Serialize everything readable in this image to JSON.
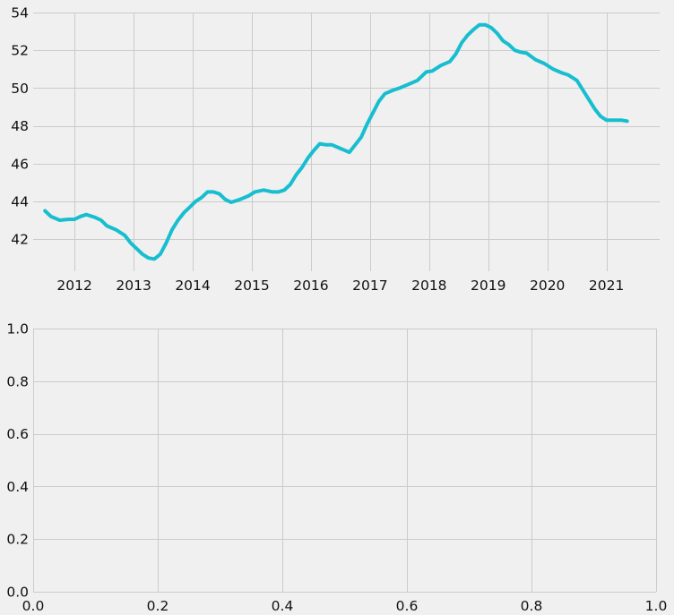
{
  "chart_data": [
    {
      "type": "line",
      "title": "",
      "xlabel": "",
      "ylabel": "",
      "xlim": [
        2011.3,
        2021.9
      ],
      "ylim": [
        40.3,
        54
      ],
      "xticks": [
        2012,
        2013,
        2014,
        2015,
        2016,
        2017,
        2018,
        2019,
        2020,
        2021
      ],
      "xtick_labels": [
        "2012",
        "2013",
        "2014",
        "2015",
        "2016",
        "2017",
        "2018",
        "2019",
        "2020",
        "2021"
      ],
      "yticks": [
        42,
        44,
        46,
        48,
        50,
        52,
        54
      ],
      "ytick_labels": [
        "42",
        "44",
        "46",
        "48",
        "50",
        "52",
        "54"
      ],
      "grid": true,
      "series": [
        {
          "color": "#17becf",
          "x": [
            2011.5,
            2011.6,
            2011.75,
            2011.9,
            2012.0,
            2012.1,
            2012.2,
            2012.35,
            2012.45,
            2012.55,
            2012.7,
            2012.85,
            2012.95,
            2013.05,
            2013.15,
            2013.25,
            2013.35,
            2013.45,
            2013.55,
            2013.65,
            2013.75,
            2013.85,
            2013.95,
            2014.05,
            2014.15,
            2014.25,
            2014.35,
            2014.45,
            2014.55,
            2014.65,
            2014.8,
            2014.95,
            2015.05,
            2015.2,
            2015.35,
            2015.45,
            2015.55,
            2015.65,
            2015.75,
            2015.85,
            2015.95,
            2016.05,
            2016.15,
            2016.25,
            2016.35,
            2016.5,
            2016.65,
            2016.75,
            2016.85,
            2016.95,
            2017.05,
            2017.15,
            2017.25,
            2017.4,
            2017.5,
            2017.65,
            2017.8,
            2017.95,
            2018.05,
            2018.2,
            2018.35,
            2018.45,
            2018.55,
            2018.65,
            2018.75,
            2018.85,
            2018.95,
            2019.05,
            2019.15,
            2019.25,
            2019.35,
            2019.45,
            2019.55,
            2019.65,
            2019.8,
            2019.95,
            2020.1,
            2020.25,
            2020.35,
            2020.5,
            2020.6,
            2020.7,
            2020.8,
            2020.9,
            2021.0,
            2021.1,
            2021.25,
            2021.35
          ],
          "y": [
            43.5,
            43.2,
            43.0,
            43.05,
            43.05,
            43.2,
            43.3,
            43.15,
            43.0,
            42.7,
            42.5,
            42.2,
            41.8,
            41.5,
            41.2,
            41.0,
            40.95,
            41.2,
            41.8,
            42.5,
            43.0,
            43.4,
            43.7,
            44.0,
            44.2,
            44.5,
            44.5,
            44.4,
            44.1,
            43.95,
            44.1,
            44.3,
            44.5,
            44.6,
            44.5,
            44.5,
            44.6,
            44.9,
            45.4,
            45.8,
            46.3,
            46.7,
            47.05,
            47.0,
            47.0,
            46.8,
            46.6,
            47.0,
            47.4,
            48.1,
            48.7,
            49.3,
            49.7,
            49.9,
            50.0,
            50.2,
            50.4,
            50.85,
            50.9,
            51.2,
            51.4,
            51.8,
            52.4,
            52.8,
            53.1,
            53.35,
            53.35,
            53.2,
            52.9,
            52.5,
            52.3,
            52.0,
            51.9,
            51.85,
            51.5,
            51.3,
            51.0,
            50.8,
            50.7,
            50.4,
            49.9,
            49.4,
            48.9,
            48.5,
            48.3,
            48.3,
            48.3,
            48.25
          ]
        }
      ]
    },
    {
      "type": "line",
      "title": "",
      "xlabel": "",
      "ylabel": "",
      "xlim": [
        0,
        1
      ],
      "ylim": [
        0,
        1
      ],
      "xticks": [
        0,
        0.2,
        0.4,
        0.6,
        0.8,
        1
      ],
      "xtick_labels": [
        "0.0",
        "0.2",
        "0.4",
        "0.6",
        "0.8",
        "1.0"
      ],
      "yticks": [
        0,
        0.2,
        0.4,
        0.6,
        0.8,
        1
      ],
      "ytick_labels": [
        "0.0",
        "0.2",
        "0.4",
        "0.6",
        "0.8",
        "1.0"
      ],
      "grid": true,
      "series": []
    }
  ]
}
